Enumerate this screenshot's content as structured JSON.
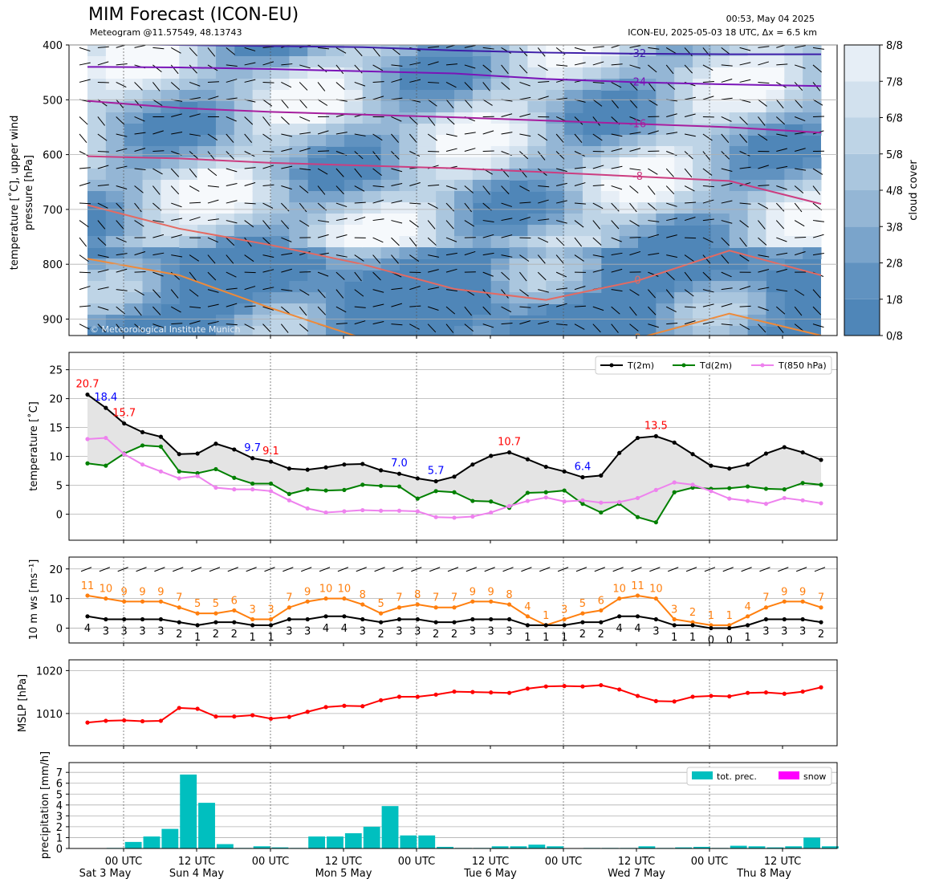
{
  "header": {
    "title": "MIM Forecast (ICON-EU)",
    "subtitle": "Meteogram @11.57549, 48.13743",
    "time": "00:53, May 04 2025",
    "run": "ICON-EU, 2025-05-03 18 UTC, Δx = 6.5 km",
    "copyright": "© Meteorological Institute Munich"
  },
  "x_axis": {
    "tick_labels": [
      "00 UTC",
      "12 UTC",
      "00 UTC",
      "12 UTC",
      "00 UTC",
      "12 UTC",
      "00 UTC",
      "12 UTC",
      "00 UTC",
      "12 UTC"
    ],
    "day_labels": [
      "Sat 3 May",
      "Sun 4 May",
      "Mon 5 May",
      "Tue 6 May",
      "Wed 7 May",
      "Thu 8 May"
    ]
  },
  "chart_data": [
    {
      "type": "heatmap",
      "ylabel": "temperature [˚C], upper wind\npressure [hPa]",
      "yticks": [
        400,
        500,
        600,
        700,
        800,
        900
      ],
      "ylim": [
        930,
        400
      ],
      "colorbar": {
        "label": "cloud cover",
        "ticks": [
          "0/8",
          "1/8",
          "2/8",
          "3/8",
          "4/8",
          "5/8",
          "6/8",
          "7/8",
          "8/8"
        ],
        "colors": [
          "#4f86b8",
          "#6092c0",
          "#7aa4cb",
          "#94b6d5",
          "#aac6de",
          "#bed4e6",
          "#d2e1ee",
          "#e6eef6",
          "#f6f9fc"
        ]
      },
      "isotherms": [
        {
          "label": "-32",
          "color": "#3d1ea8",
          "y": [
            398,
            400,
            402,
            404,
            410,
            414,
            416,
            417,
            417
          ]
        },
        {
          "label": "-24",
          "color": "#7a14b8",
          "y": [
            440,
            441,
            444,
            448,
            452,
            462,
            468,
            472,
            475
          ]
        },
        {
          "label": "-16",
          "color": "#a61e9e",
          "y": [
            502,
            515,
            522,
            527,
            532,
            538,
            544,
            550,
            560
          ]
        },
        {
          "label": "-8",
          "color": "#cc3d80",
          "y": [
            603,
            607,
            615,
            620,
            625,
            632,
            640,
            648,
            690
          ]
        },
        {
          "label": "0",
          "color": "#e46a62",
          "y": [
            692,
            735,
            765,
            800,
            845,
            865,
            830,
            775,
            820
          ]
        },
        {
          "label": "8",
          "color": "#ee8a3a",
          "y": [
            790,
            820,
            880,
            935,
            935,
            935,
            935,
            890,
            930
          ]
        }
      ]
    },
    {
      "type": "line",
      "ylabel": "temperature [˚C]",
      "yticks": [
        0,
        5,
        10,
        15,
        20,
        25
      ],
      "ylim": [
        -4.5,
        28
      ],
      "series": [
        {
          "name": "T(2m)",
          "color": "#000000",
          "values": [
            20.7,
            18.4,
            15.7,
            14.2,
            13.4,
            10.4,
            10.5,
            12.2,
            11.2,
            9.7,
            9.1,
            7.9,
            7.7,
            8.1,
            8.6,
            8.7,
            7.6,
            7.0,
            6.2,
            5.7,
            6.5,
            8.6,
            10.1,
            10.7,
            9.5,
            8.2,
            7.4,
            6.4,
            6.7,
            10.6,
            13.2,
            13.5,
            12.4,
            10.4,
            8.4,
            7.9,
            8.6,
            10.5,
            11.6,
            10.7,
            9.4
          ]
        },
        {
          "name": "Td(2m)",
          "color": "#008000",
          "values": [
            8.8,
            8.4,
            10.5,
            11.9,
            11.7,
            7.4,
            7.1,
            7.8,
            6.3,
            5.3,
            5.3,
            3.5,
            4.3,
            4.1,
            4.2,
            5.1,
            4.9,
            4.8,
            2.7,
            4.0,
            3.8,
            2.3,
            2.2,
            1.1,
            3.7,
            3.8,
            4.1,
            1.8,
            0.3,
            1.8,
            -0.5,
            -1.4,
            3.8,
            4.6,
            4.4,
            4.5,
            4.8,
            4.4,
            4.3,
            5.4,
            5.1
          ]
        },
        {
          "name": "T(850 hPa)",
          "color": "#ee82ee",
          "values": [
            13.0,
            13.2,
            10.4,
            8.6,
            7.4,
            6.2,
            6.6,
            4.6,
            4.3,
            4.3,
            4.0,
            2.4,
            1.0,
            0.3,
            0.5,
            0.7,
            0.6,
            0.6,
            0.5,
            -0.5,
            -0.6,
            -0.4,
            0.3,
            1.4,
            2.3,
            2.9,
            2.2,
            2.4,
            2.0,
            2.1,
            2.8,
            4.2,
            5.5,
            5.1,
            4.0,
            2.7,
            2.3,
            1.8,
            2.8,
            2.4,
            1.9
          ]
        }
      ],
      "annotations": [
        {
          "text": "20.7",
          "index": 0,
          "value": 20.7,
          "color": "#ff0000"
        },
        {
          "text": "18.4",
          "index": 1,
          "value": 18.4,
          "color": "#0000ff"
        },
        {
          "text": "15.7",
          "index": 2,
          "value": 15.7,
          "color": "#ff0000"
        },
        {
          "text": "9.7",
          "index": 9,
          "value": 9.7,
          "color": "#0000ff"
        },
        {
          "text": "9.1",
          "index": 10,
          "value": 9.1,
          "color": "#ff0000"
        },
        {
          "text": "7.0",
          "index": 17,
          "value": 7.0,
          "color": "#0000ff"
        },
        {
          "text": "5.7",
          "index": 19,
          "value": 5.7,
          "color": "#0000ff"
        },
        {
          "text": "10.7",
          "index": 23,
          "value": 10.7,
          "color": "#ff0000"
        },
        {
          "text": "6.4",
          "index": 27,
          "value": 6.4,
          "color": "#0000ff"
        },
        {
          "text": "13.5",
          "index": 31,
          "value": 13.5,
          "color": "#ff0000"
        }
      ],
      "legend": "top-right"
    },
    {
      "type": "line",
      "ylabel": "10 m ws [ms⁻¹]",
      "yticks": [
        0,
        10,
        20
      ],
      "ylim": [
        -5,
        24
      ],
      "series": [
        {
          "name": "gust",
          "color": "#ff7f0e",
          "values": [
            11,
            10,
            9,
            9,
            9,
            7,
            5,
            5,
            6,
            3,
            3,
            7,
            9,
            10,
            10,
            8,
            5,
            7,
            8,
            7,
            7,
            9,
            9,
            8,
            4,
            1,
            3,
            5,
            6,
            10,
            11,
            10,
            3,
            2,
            1,
            1,
            4,
            7,
            9,
            9,
            7
          ]
        },
        {
          "name": "mean",
          "color": "#000000",
          "values": [
            4,
            3,
            3,
            3,
            3,
            2,
            1,
            2,
            2,
            1,
            1,
            3,
            3,
            4,
            4,
            3,
            2,
            3,
            3,
            2,
            2,
            3,
            3,
            3,
            1,
            1,
            1,
            2,
            2,
            4,
            4,
            3,
            1,
            1,
            0,
            0,
            1,
            3,
            3,
            3,
            2
          ]
        }
      ]
    },
    {
      "type": "line",
      "ylabel": "MSLP [hPa]",
      "yticks": [
        1010,
        1020
      ],
      "ylim": [
        1002.5,
        1022.5
      ],
      "series": [
        {
          "name": "MSLP",
          "color": "#ff0000",
          "values": [
            1007.9,
            1008.3,
            1008.4,
            1008.2,
            1008.3,
            1011.3,
            1011.1,
            1009.3,
            1009.3,
            1009.6,
            1008.8,
            1009.2,
            1010.4,
            1011.5,
            1011.8,
            1011.7,
            1013.1,
            1013.9,
            1013.9,
            1014.4,
            1015.1,
            1015.0,
            1014.9,
            1014.8,
            1015.8,
            1016.3,
            1016.4,
            1016.3,
            1016.6,
            1015.6,
            1014.1,
            1012.9,
            1012.8,
            1013.9,
            1014.1,
            1014.0,
            1014.8,
            1014.9,
            1014.6,
            1015.1,
            1016.1
          ]
        }
      ]
    },
    {
      "type": "bar",
      "ylabel": "precipitation [mm/h]",
      "yticks": [
        0,
        1,
        2,
        3,
        4,
        5,
        6,
        7
      ],
      "ylim": [
        0,
        7.9
      ],
      "series": [
        {
          "name": "tot. prec.",
          "color": "#00bfbf",
          "values": [
            0,
            0.05,
            0.6,
            1.1,
            1.8,
            6.8,
            4.2,
            0.4,
            0.05,
            0.2,
            0.1,
            0.05,
            1.1,
            1.1,
            1.4,
            2.0,
            3.9,
            1.2,
            1.2,
            0.15,
            0.05,
            0.05,
            0.2,
            0.2,
            0.35,
            0.2,
            0.02,
            0.05,
            0.05,
            0.05,
            0.2,
            0.05,
            0.1,
            0.15,
            0.05,
            0.25,
            0.2,
            0.1,
            0.2,
            1.0,
            0.2
          ]
        },
        {
          "name": "snow",
          "color": "#ff00ff",
          "values": []
        }
      ],
      "legend": "top-right"
    }
  ]
}
